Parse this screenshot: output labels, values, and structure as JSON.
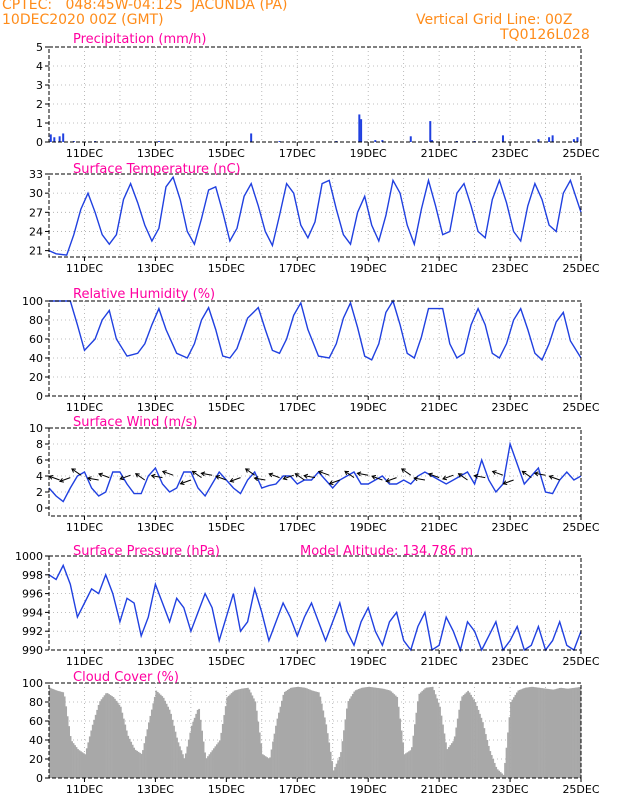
{
  "header": {
    "line1": "CPTEC:   048:45W-04:12S  JACUNDA (PA)",
    "line2": "10DEC2020 00Z (GMT)",
    "grid_note": "Vertical Grid Line: 00Z",
    "code": "TQ0126L028"
  },
  "colors": {
    "header": "#ff8c1a",
    "title": "#ff00a0",
    "series": "#2040e0",
    "cloud": "#a8a8a8",
    "arrows": "#000000",
    "grid": "#aaaaaa"
  },
  "chart_data": [
    {
      "type": "bar",
      "title": "Precipitation (mm/h)",
      "xlabel": "",
      "ylabel": "",
      "x_ticks": [
        "11DEC",
        "13DEC",
        "15DEC",
        "17DEC",
        "19DEC",
        "21DEC",
        "23DEC",
        "25DEC"
      ],
      "x_range_days": [
        10,
        25
      ],
      "ylim": [
        0,
        5
      ],
      "y_ticks": [
        "0",
        "1",
        "2",
        "3",
        "4",
        "5"
      ],
      "grid": true,
      "series": [
        {
          "x_days": [
            10.05,
            10.15,
            10.3,
            10.4,
            10.7,
            11.3,
            13.1,
            15.7,
            16.5,
            18.1,
            18.75,
            18.8,
            19.2,
            19.4,
            20.2,
            20.75,
            20.8,
            21.5,
            22.0,
            22.8,
            23.8,
            24.1,
            24.2,
            24.8,
            24.9
          ],
          "values": [
            0.4,
            0.25,
            0.3,
            0.45,
            0.05,
            0.05,
            0.05,
            0.45,
            0.05,
            0.05,
            1.45,
            1.2,
            0.1,
            0.1,
            0.3,
            1.1,
            0.1,
            0.05,
            0.05,
            0.35,
            0.15,
            0.25,
            0.35,
            0.15,
            0.25
          ]
        }
      ]
    },
    {
      "type": "line",
      "title": "Surface Temperature (nC)",
      "xlabel": "",
      "ylabel": "",
      "x_ticks": [
        "11DEC",
        "13DEC",
        "15DEC",
        "17DEC",
        "19DEC",
        "21DEC",
        "23DEC",
        "25DEC"
      ],
      "x_range_days": [
        10,
        25
      ],
      "ylim": [
        20,
        33
      ],
      "y_ticks": [
        "21",
        "24",
        "27",
        "30",
        "33"
      ],
      "grid": true,
      "series": [
        {
          "x_days": [
            10.0,
            10.2,
            10.5,
            10.7,
            10.9,
            11.1,
            11.3,
            11.5,
            11.7,
            11.9,
            12.1,
            12.3,
            12.5,
            12.7,
            12.9,
            13.1,
            13.3,
            13.5,
            13.7,
            13.9,
            14.1,
            14.3,
            14.5,
            14.7,
            14.9,
            15.1,
            15.3,
            15.5,
            15.7,
            15.9,
            16.1,
            16.3,
            16.5,
            16.7,
            16.9,
            17.1,
            17.3,
            17.5,
            17.7,
            17.9,
            18.1,
            18.3,
            18.5,
            18.7,
            18.9,
            19.1,
            19.3,
            19.5,
            19.7,
            19.9,
            20.1,
            20.3,
            20.5,
            20.7,
            20.9,
            21.1,
            21.3,
            21.5,
            21.7,
            21.9,
            22.1,
            22.3,
            22.5,
            22.7,
            22.9,
            23.1,
            23.3,
            23.5,
            23.7,
            23.9,
            24.1,
            24.3,
            24.5,
            24.7,
            25.0
          ],
          "values": [
            21.0,
            20.5,
            20.3,
            23.5,
            27.5,
            30.0,
            27.0,
            23.5,
            22.0,
            23.5,
            29.0,
            31.5,
            28.5,
            25.0,
            22.5,
            24.5,
            31.0,
            32.5,
            29.0,
            24.0,
            22.0,
            26.0,
            30.5,
            31.0,
            27.0,
            22.5,
            24.5,
            29.5,
            31.5,
            28.0,
            24.0,
            21.8,
            26.5,
            31.5,
            30.0,
            25.0,
            23.0,
            25.5,
            31.5,
            32.0,
            27.5,
            23.5,
            22.0,
            27.0,
            29.5,
            25.0,
            22.5,
            26.5,
            32.0,
            30.0,
            25.0,
            22.0,
            27.5,
            32.0,
            28.0,
            23.5,
            24.0,
            30.0,
            31.5,
            28.0,
            24.0,
            23.0,
            29.0,
            32.0,
            28.5,
            24.0,
            22.5,
            28.0,
            31.5,
            29.0,
            25.0,
            24.0,
            30.0,
            32.0,
            27.0
          ]
        }
      ]
    },
    {
      "type": "line",
      "title": "Relative Humidity (%)",
      "xlabel": "",
      "ylabel": "",
      "x_ticks": [
        "11DEC",
        "13DEC",
        "15DEC",
        "17DEC",
        "19DEC",
        "21DEC",
        "23DEC",
        "25DEC"
      ],
      "x_range_days": [
        10,
        25
      ],
      "ylim": [
        0,
        100
      ],
      "y_ticks": [
        "0",
        "20",
        "40",
        "60",
        "80",
        "100"
      ],
      "grid": true,
      "series": [
        {
          "x_days": [
            10.0,
            10.3,
            10.6,
            10.8,
            11.0,
            11.3,
            11.5,
            11.7,
            11.9,
            12.2,
            12.5,
            12.7,
            12.9,
            13.1,
            13.3,
            13.6,
            13.9,
            14.1,
            14.3,
            14.5,
            14.7,
            14.9,
            15.1,
            15.3,
            15.6,
            15.9,
            16.1,
            16.3,
            16.5,
            16.7,
            16.9,
            17.1,
            17.3,
            17.6,
            17.9,
            18.1,
            18.3,
            18.5,
            18.7,
            18.9,
            19.1,
            19.3,
            19.5,
            19.7,
            19.9,
            20.1,
            20.3,
            20.5,
            20.7,
            20.9,
            21.1,
            21.3,
            21.5,
            21.7,
            21.9,
            22.1,
            22.3,
            22.5,
            22.7,
            22.9,
            23.1,
            23.3,
            23.5,
            23.7,
            23.9,
            24.1,
            24.3,
            24.5,
            24.7,
            25.0
          ],
          "values": [
            100,
            100,
            100,
            75,
            48,
            60,
            80,
            90,
            60,
            42,
            45,
            55,
            75,
            92,
            70,
            45,
            40,
            55,
            80,
            93,
            70,
            42,
            40,
            50,
            82,
            93,
            70,
            48,
            45,
            60,
            85,
            98,
            70,
            42,
            40,
            55,
            82,
            98,
            72,
            42,
            38,
            55,
            88,
            100,
            75,
            45,
            40,
            62,
            92,
            92,
            92,
            55,
            40,
            45,
            75,
            92,
            75,
            45,
            40,
            55,
            80,
            92,
            70,
            45,
            38,
            55,
            78,
            88,
            58,
            40
          ]
        }
      ]
    },
    {
      "type": "line",
      "title": "Surface Wind (m/s)",
      "xlabel": "",
      "ylabel": "",
      "x_ticks": [
        "11DEC",
        "13DEC",
        "15DEC",
        "17DEC",
        "19DEC",
        "21DEC",
        "23DEC",
        "25DEC"
      ],
      "x_range_days": [
        10,
        25
      ],
      "ylim": [
        -1,
        10
      ],
      "y_ticks": [
        "0",
        "2",
        "4",
        "6",
        "8",
        "10"
      ],
      "grid": true,
      "series": [
        {
          "x_days": [
            10.0,
            10.2,
            10.4,
            10.6,
            10.8,
            11.0,
            11.2,
            11.4,
            11.6,
            11.8,
            12.0,
            12.2,
            12.4,
            12.6,
            12.8,
            13.0,
            13.2,
            13.4,
            13.6,
            13.8,
            14.0,
            14.2,
            14.4,
            14.6,
            14.8,
            15.0,
            15.2,
            15.4,
            15.6,
            15.8,
            16.0,
            16.2,
            16.4,
            16.6,
            16.8,
            17.0,
            17.2,
            17.4,
            17.6,
            17.8,
            18.0,
            18.2,
            18.4,
            18.6,
            18.8,
            19.0,
            19.2,
            19.4,
            19.6,
            19.8,
            20.0,
            20.2,
            20.4,
            20.6,
            20.8,
            21.0,
            21.2,
            21.4,
            21.6,
            21.8,
            22.0,
            22.2,
            22.4,
            22.6,
            22.8,
            23.0,
            23.2,
            23.4,
            23.6,
            23.8,
            24.0,
            24.2,
            24.4,
            24.6,
            24.8,
            25.0
          ],
          "values": [
            2.5,
            1.5,
            0.8,
            2.5,
            4.0,
            4.5,
            2.5,
            1.5,
            2.0,
            4.5,
            4.5,
            3.0,
            1.8,
            1.8,
            4.0,
            5.0,
            3.0,
            2.0,
            2.5,
            4.5,
            4.5,
            2.5,
            1.5,
            3.0,
            4.5,
            3.5,
            2.5,
            1.8,
            3.5,
            4.5,
            2.5,
            2.8,
            3.0,
            4.0,
            4.0,
            3.0,
            3.5,
            3.5,
            4.5,
            3.5,
            2.5,
            3.5,
            4.0,
            4.5,
            3.0,
            3.0,
            3.5,
            4.0,
            3.0,
            3.0,
            3.5,
            3.0,
            4.0,
            4.5,
            4.0,
            3.5,
            3.0,
            3.5,
            4.0,
            4.5,
            3.0,
            6.0,
            3.5,
            2.0,
            3.0,
            8.0,
            5.5,
            3.0,
            4.0,
            5.0,
            2.0,
            1.8,
            3.5,
            4.5,
            3.5,
            4.0
          ]
        }
      ],
      "wind_arrows_days": [
        10.3,
        10.6,
        10.9,
        11.4,
        11.7,
        12.3,
        12.7,
        13.2,
        13.5,
        14.0,
        14.3,
        14.6,
        15.0,
        15.4,
        15.8,
        16.1,
        16.5,
        16.9,
        17.2,
        17.5,
        17.9,
        18.2,
        18.6,
        19.0,
        19.4,
        19.8,
        20.2,
        20.6,
        21.0,
        21.4,
        21.8,
        22.3,
        22.8,
        23.1,
        23.6,
        24.0,
        24.4
      ]
    },
    {
      "type": "line",
      "title": "Surface Pressure (hPa)",
      "subtitle": "Model Altitude: 134.786 m",
      "xlabel": "",
      "ylabel": "",
      "x_ticks": [
        "11DEC",
        "13DEC",
        "15DEC",
        "17DEC",
        "19DEC",
        "21DEC",
        "23DEC",
        "25DEC"
      ],
      "x_range_days": [
        10,
        25
      ],
      "ylim": [
        990,
        1000
      ],
      "y_ticks": [
        "990",
        "992",
        "994",
        "996",
        "998",
        "1000"
      ],
      "grid": true,
      "series": [
        {
          "x_days": [
            10.0,
            10.2,
            10.4,
            10.6,
            10.8,
            11.0,
            11.2,
            11.4,
            11.6,
            11.8,
            12.0,
            12.2,
            12.4,
            12.6,
            12.8,
            13.0,
            13.2,
            13.4,
            13.6,
            13.8,
            14.0,
            14.2,
            14.4,
            14.6,
            14.8,
            15.0,
            15.2,
            15.4,
            15.6,
            15.8,
            16.0,
            16.2,
            16.4,
            16.6,
            16.8,
            17.0,
            17.2,
            17.4,
            17.6,
            17.8,
            18.0,
            18.2,
            18.4,
            18.6,
            18.8,
            19.0,
            19.2,
            19.4,
            19.6,
            19.8,
            20.0,
            20.2,
            20.4,
            20.6,
            20.8,
            21.0,
            21.2,
            21.4,
            21.6,
            21.8,
            22.0,
            22.2,
            22.4,
            22.6,
            22.8,
            23.0,
            23.2,
            23.4,
            23.6,
            23.8,
            24.0,
            24.2,
            24.4,
            24.6,
            24.8,
            25.0
          ],
          "values": [
            998.0,
            997.5,
            999.0,
            997.0,
            993.5,
            995.0,
            996.5,
            996.0,
            998.0,
            996.0,
            993.0,
            995.5,
            995.0,
            991.5,
            993.5,
            997.0,
            995.0,
            993.0,
            995.5,
            994.5,
            992.0,
            994.0,
            996.0,
            994.5,
            991.0,
            993.5,
            996.0,
            992.0,
            993.0,
            996.5,
            994.0,
            991.0,
            993.0,
            995.0,
            993.5,
            991.5,
            993.5,
            995.0,
            993.0,
            991.0,
            993.0,
            995.0,
            992.0,
            990.5,
            993.0,
            994.5,
            992.0,
            990.5,
            993.0,
            994.0,
            991.0,
            990.0,
            992.5,
            994.0,
            990.0,
            990.5,
            993.5,
            992.0,
            990.0,
            993.0,
            992.0,
            990.0,
            991.5,
            993.0,
            990.0,
            991.0,
            992.5,
            990.0,
            990.5,
            992.5,
            990.0,
            991.0,
            993.0,
            990.5,
            990.0,
            992.0
          ]
        }
      ]
    },
    {
      "type": "area",
      "title": "Cloud Cover (%)",
      "xlabel": "",
      "ylabel": "",
      "x_ticks": [
        "11DEC",
        "13DEC",
        "15DEC",
        "17DEC",
        "19DEC",
        "21DEC",
        "23DEC",
        "25DEC"
      ],
      "x_range_days": [
        10,
        25
      ],
      "ylim": [
        0,
        100
      ],
      "y_ticks": [
        "0",
        "20",
        "40",
        "60",
        "80",
        "100"
      ],
      "grid": true,
      "series": [
        {
          "x_days": [
            10.0,
            10.2,
            10.4,
            10.6,
            10.8,
            11.0,
            11.2,
            11.4,
            11.6,
            11.8,
            12.0,
            12.2,
            12.4,
            12.6,
            12.8,
            13.0,
            13.2,
            13.4,
            13.6,
            13.8,
            14.0,
            14.2,
            14.4,
            14.6,
            14.8,
            15.0,
            15.2,
            15.4,
            15.6,
            15.8,
            16.0,
            16.2,
            16.4,
            16.6,
            16.8,
            17.0,
            17.2,
            17.4,
            17.6,
            17.8,
            18.0,
            18.2,
            18.4,
            18.6,
            18.8,
            19.0,
            19.2,
            19.4,
            19.6,
            19.8,
            20.0,
            20.2,
            20.4,
            20.6,
            20.8,
            21.0,
            21.2,
            21.4,
            21.6,
            21.8,
            22.0,
            22.2,
            22.4,
            22.6,
            22.8,
            23.0,
            23.2,
            23.4,
            23.6,
            23.8,
            24.0,
            24.2,
            24.4,
            24.6,
            24.8,
            25.0
          ],
          "values": [
            95,
            92,
            90,
            40,
            30,
            25,
            55,
            80,
            90,
            85,
            75,
            45,
            30,
            25,
            60,
            92,
            85,
            70,
            40,
            20,
            55,
            75,
            20,
            30,
            40,
            85,
            92,
            94,
            95,
            80,
            25,
            20,
            60,
            90,
            95,
            96,
            95,
            92,
            90,
            55,
            8,
            25,
            80,
            92,
            95,
            96,
            95,
            94,
            92,
            85,
            25,
            30,
            88,
            95,
            96,
            75,
            30,
            40,
            85,
            92,
            80,
            60,
            30,
            10,
            3,
            80,
            92,
            95,
            96,
            95,
            94,
            93,
            95,
            94,
            95,
            96
          ]
        }
      ]
    }
  ]
}
